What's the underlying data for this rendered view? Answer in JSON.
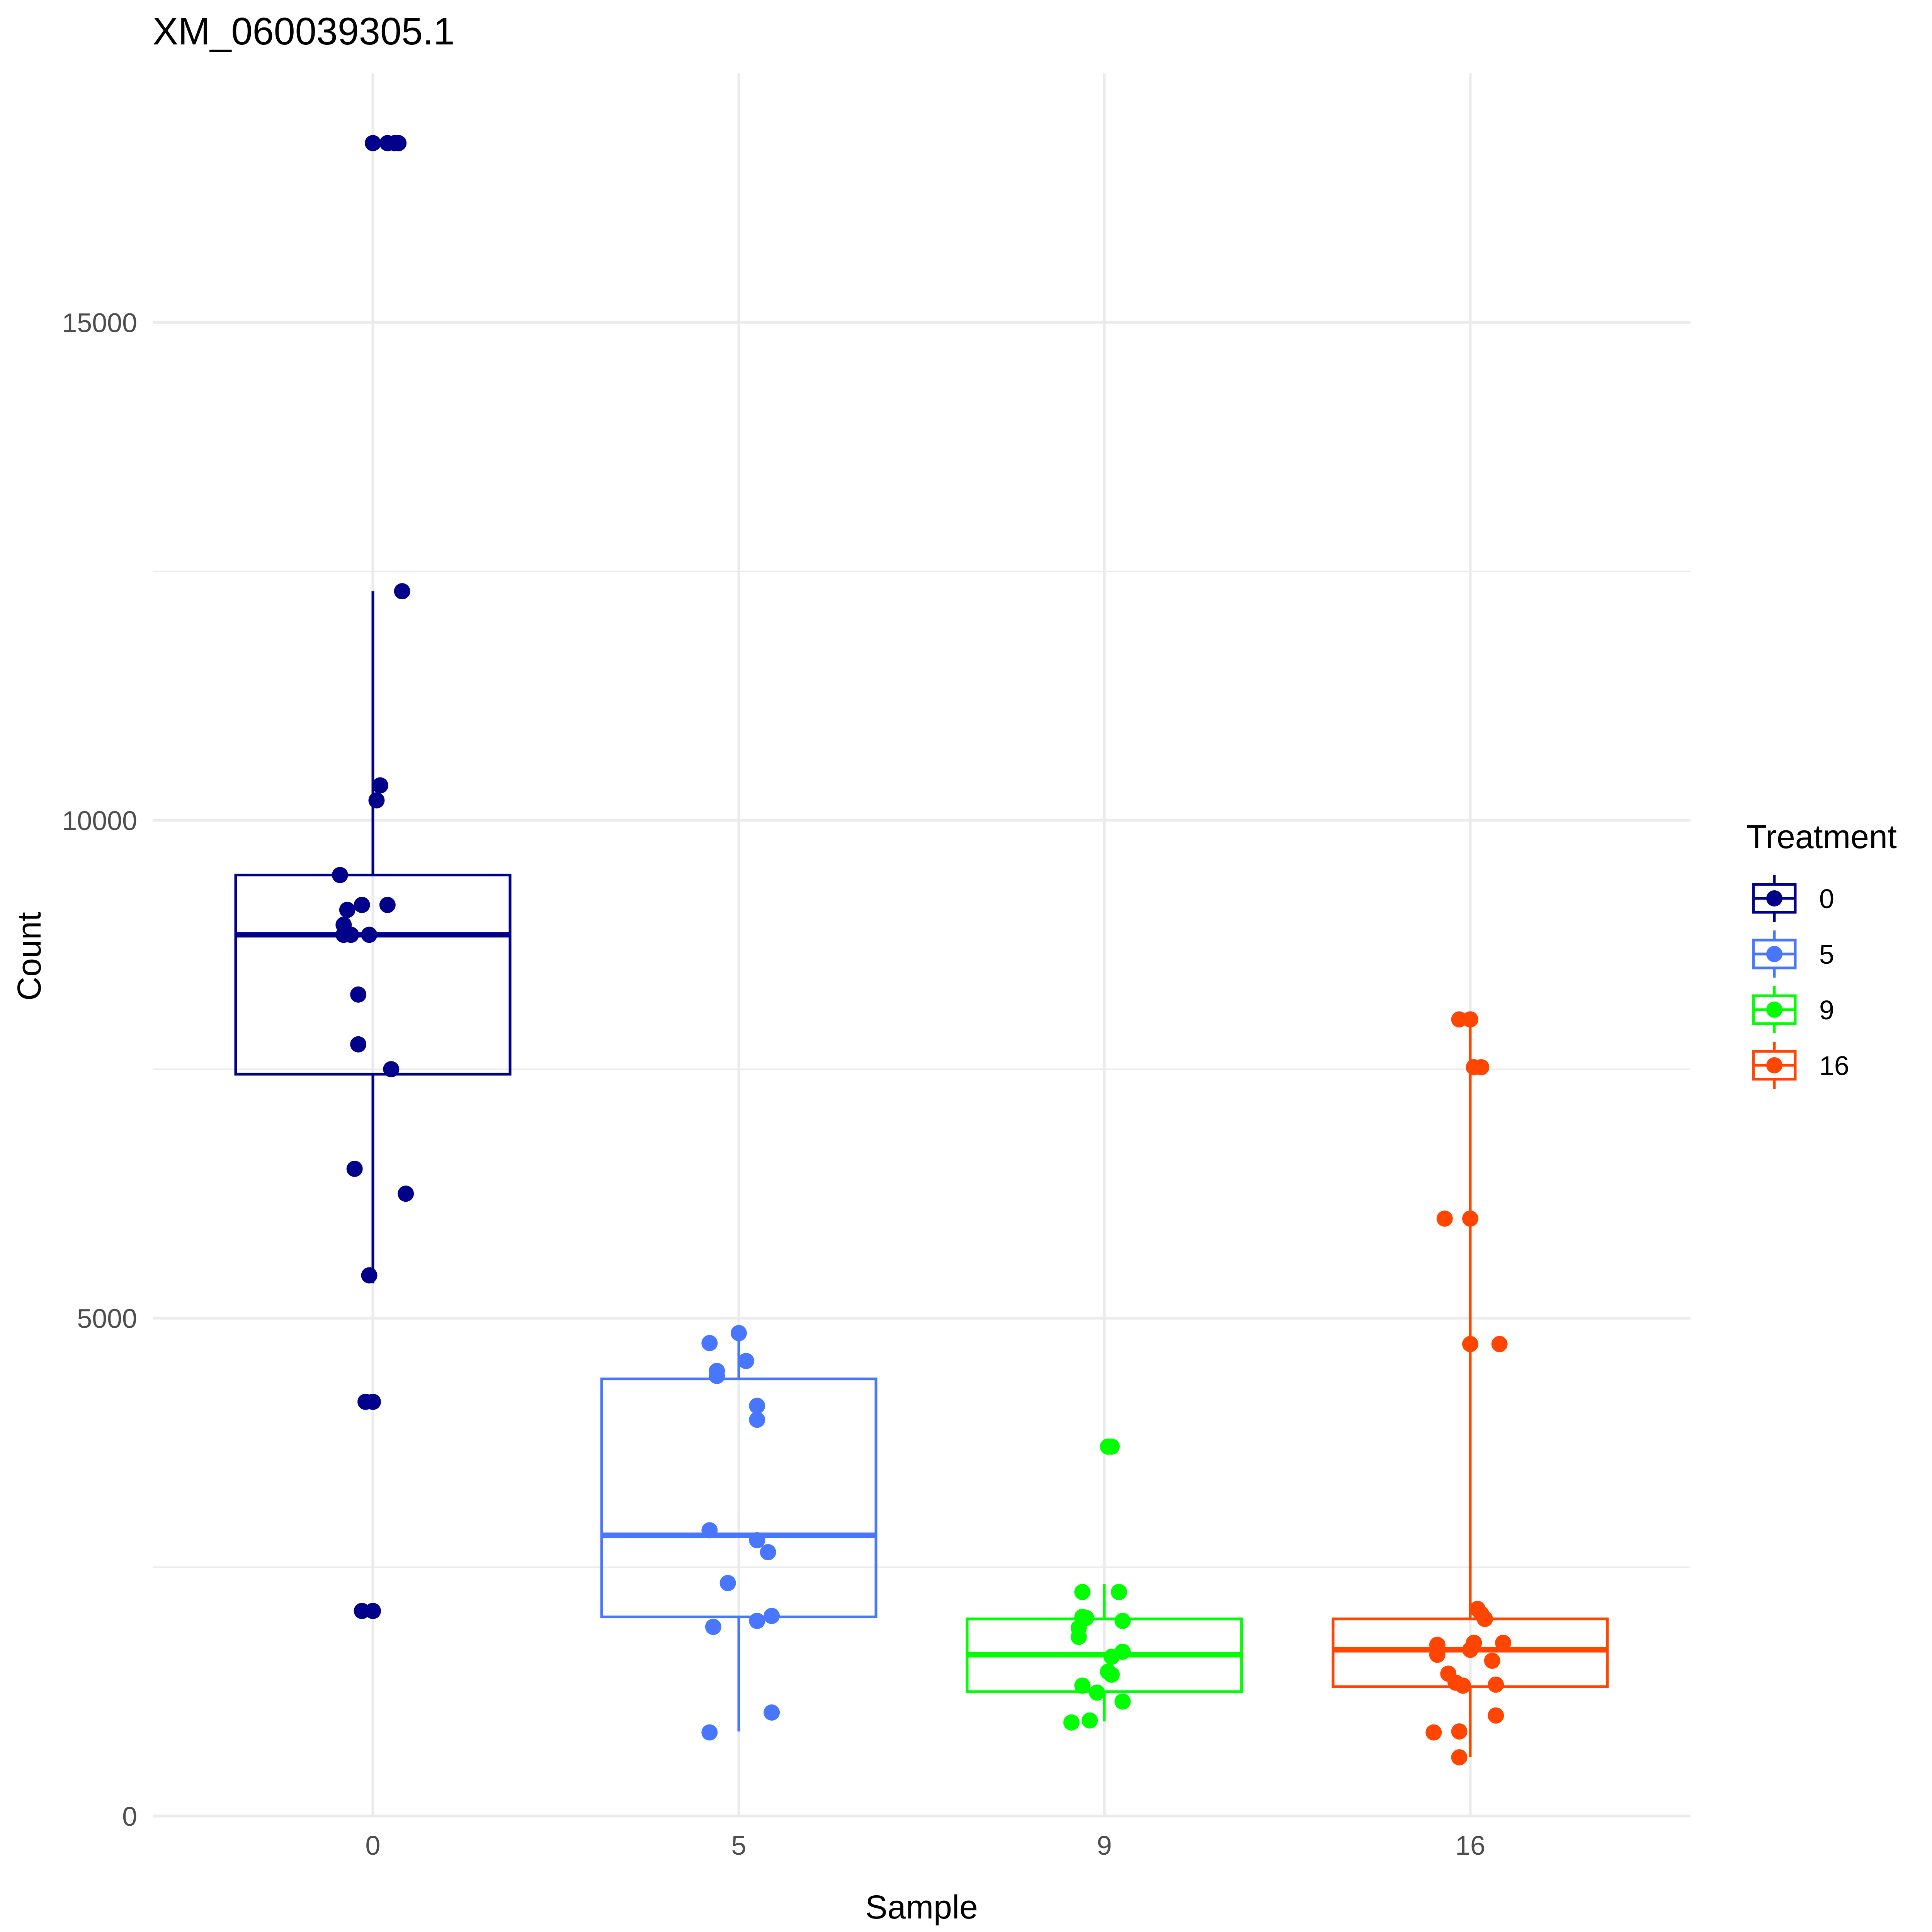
{
  "chart_data": {
    "type": "box",
    "title": "XM_060039305.1",
    "xlabel": "Sample",
    "ylabel": "Count",
    "categories": [
      "0",
      "5",
      "9",
      "16"
    ],
    "y_ticks": [
      0,
      5000,
      10000,
      15000
    ],
    "y_tick_labels": [
      "0",
      "5000",
      "10000",
      "15000"
    ],
    "ylim": [
      0,
      17500
    ],
    "grid": true,
    "legend": {
      "title": "Treatment",
      "position": "right",
      "entries": [
        "0",
        "5",
        "9",
        "16"
      ]
    },
    "colors": {
      "0": "#00008B",
      "5": "#4876FF",
      "9": "#00FF00",
      "16": "#FF4500"
    },
    "series": [
      {
        "name": "0",
        "box": {
          "whisker_low": 5350,
          "q1": 7450,
          "median": 8850,
          "q3": 9450,
          "whisker_high": 12300
        },
        "points": [
          {
            "x": -0.0,
            "y": 16800
          },
          {
            "x": 0.04,
            "y": 16800
          },
          {
            "x": 0.06,
            "y": 16800
          },
          {
            "x": 0.07,
            "y": 16800
          },
          {
            "x": 0.08,
            "y": 12300
          },
          {
            "x": 0.02,
            "y": 10350
          },
          {
            "x": 0.01,
            "y": 10200
          },
          {
            "x": -0.09,
            "y": 9450
          },
          {
            "x": -0.03,
            "y": 9150
          },
          {
            "x": 0.04,
            "y": 9150
          },
          {
            "x": -0.07,
            "y": 9100
          },
          {
            "x": -0.08,
            "y": 8950
          },
          {
            "x": -0.08,
            "y": 8850
          },
          {
            "x": -0.06,
            "y": 8850
          },
          {
            "x": -0.01,
            "y": 8850
          },
          {
            "x": -0.04,
            "y": 8250
          },
          {
            "x": -0.04,
            "y": 7750
          },
          {
            "x": 0.05,
            "y": 7500
          },
          {
            "x": -0.05,
            "y": 6500
          },
          {
            "x": 0.09,
            "y": 6250
          },
          {
            "x": -0.01,
            "y": 5430
          },
          {
            "x": -0.02,
            "y": 4160
          },
          {
            "x": -0.0,
            "y": 4160
          },
          {
            "x": -0.03,
            "y": 2060
          },
          {
            "x": 0.0,
            "y": 2060
          }
        ]
      },
      {
        "name": "5",
        "box": {
          "whisker_low": 850,
          "q1": 2000,
          "median": 2820,
          "q3": 4390,
          "whisker_high": 4850
        },
        "points": [
          {
            "x": 0.0,
            "y": 4850
          },
          {
            "x": -0.08,
            "y": 4750
          },
          {
            "x": 0.02,
            "y": 4570
          },
          {
            "x": -0.06,
            "y": 4470
          },
          {
            "x": -0.06,
            "y": 4420
          },
          {
            "x": 0.05,
            "y": 4120
          },
          {
            "x": 0.05,
            "y": 3980
          },
          {
            "x": -0.08,
            "y": 2870
          },
          {
            "x": 0.05,
            "y": 2770
          },
          {
            "x": 0.08,
            "y": 2650
          },
          {
            "x": -0.03,
            "y": 2340
          },
          {
            "x": 0.09,
            "y": 2010
          },
          {
            "x": 0.05,
            "y": 1960
          },
          {
            "x": -0.07,
            "y": 1900
          },
          {
            "x": 0.09,
            "y": 1040
          },
          {
            "x": -0.08,
            "y": 840
          }
        ]
      },
      {
        "name": "9",
        "box": {
          "whisker_low": 950,
          "q1": 1250,
          "median": 1620,
          "q3": 1980,
          "whisker_high": 2330
        },
        "points": [
          {
            "x": 0.01,
            "y": 3710
          },
          {
            "x": 0.02,
            "y": 3710
          },
          {
            "x": -0.06,
            "y": 2250
          },
          {
            "x": 0.04,
            "y": 2250
          },
          {
            "x": -0.06,
            "y": 2000
          },
          {
            "x": -0.05,
            "y": 1990
          },
          {
            "x": 0.05,
            "y": 1960
          },
          {
            "x": -0.07,
            "y": 1890
          },
          {
            "x": -0.07,
            "y": 1800
          },
          {
            "x": 0.05,
            "y": 1650
          },
          {
            "x": 0.02,
            "y": 1600
          },
          {
            "x": 0.01,
            "y": 1450
          },
          {
            "x": 0.02,
            "y": 1420
          },
          {
            "x": -0.06,
            "y": 1310
          },
          {
            "x": -0.02,
            "y": 1240
          },
          {
            "x": 0.05,
            "y": 1150
          },
          {
            "x": -0.04,
            "y": 960
          },
          {
            "x": -0.09,
            "y": 940
          }
        ]
      },
      {
        "name": "16",
        "box": {
          "whisker_low": 590,
          "q1": 1300,
          "median": 1670,
          "q3": 1980,
          "whisker_high": 8000
        },
        "points": [
          {
            "x": -0.03,
            "y": 8000
          },
          {
            "x": 0.0,
            "y": 8000
          },
          {
            "x": 0.01,
            "y": 7520
          },
          {
            "x": 0.03,
            "y": 7520
          },
          {
            "x": -0.07,
            "y": 6000
          },
          {
            "x": 0.0,
            "y": 6000
          },
          {
            "x": 0.0,
            "y": 4740
          },
          {
            "x": 0.08,
            "y": 4740
          },
          {
            "x": 0.02,
            "y": 2080
          },
          {
            "x": 0.03,
            "y": 2030
          },
          {
            "x": 0.04,
            "y": 1980
          },
          {
            "x": 0.09,
            "y": 1740
          },
          {
            "x": 0.01,
            "y": 1740
          },
          {
            "x": -0.09,
            "y": 1720
          },
          {
            "x": 0.0,
            "y": 1670
          },
          {
            "x": -0.09,
            "y": 1620
          },
          {
            "x": 0.06,
            "y": 1560
          },
          {
            "x": -0.06,
            "y": 1430
          },
          {
            "x": -0.04,
            "y": 1340
          },
          {
            "x": -0.02,
            "y": 1310
          },
          {
            "x": 0.07,
            "y": 1320
          },
          {
            "x": 0.07,
            "y": 1010
          },
          {
            "x": -0.1,
            "y": 840
          },
          {
            "x": -0.03,
            "y": 850
          },
          {
            "x": -0.03,
            "y": 590
          }
        ]
      }
    ]
  }
}
